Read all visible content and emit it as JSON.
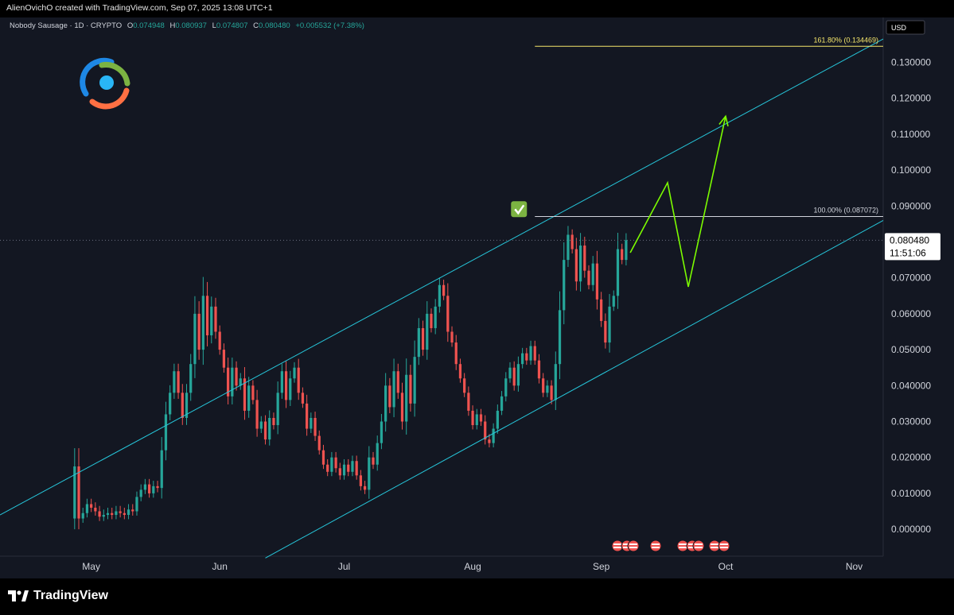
{
  "header": {
    "credit": "AlienOvichO created with TradingView.com, Sep 07, 2025 13:08 UTC+1"
  },
  "footer": {
    "brand": "TradingView"
  },
  "colors": {
    "background": "#131722",
    "up": "#26a69a",
    "down": "#ef5350",
    "channel": "#26c6da",
    "projection": "#7cfc00",
    "fib_top": "#f5e66a",
    "fib_base": "#d1d4dc",
    "text": "#d1d4dc"
  },
  "legend": {
    "symbol": "Nobody Sausage · 1D · CRYPTO",
    "o_label": "O",
    "o_value": "0.074948",
    "h_label": "H",
    "h_value": "0.080937",
    "l_label": "L",
    "l_value": "0.074807",
    "c_label": "C",
    "c_value": "0.080480",
    "change": "+0.005532 (+7.38%)"
  },
  "currency": "USD",
  "last_price": {
    "value": "0.080480",
    "countdown": "11:51:06"
  },
  "fib_levels": [
    {
      "label": "161.80% (0.134469)",
      "price": 0.134469
    },
    {
      "label": "100.00% (0.087072)",
      "price": 0.087072
    }
  ],
  "chart_data": {
    "type": "candlestick",
    "symbol": "Nobody Sausage",
    "interval": "1D",
    "y_ticks": [
      "0.130000",
      "0.120000",
      "0.110000",
      "0.100000",
      "0.090000",
      "0.080000",
      "0.070000",
      "0.060000",
      "0.050000",
      "0.040000",
      "0.030000",
      "0.020000",
      "0.010000",
      "0.000000"
    ],
    "y_tick_values": [
      0.13,
      0.12,
      0.11,
      0.1,
      0.09,
      0.08,
      0.07,
      0.06,
      0.05,
      0.04,
      0.03,
      0.02,
      0.01,
      0.0
    ],
    "ylim": [
      -0.0075,
      0.1425
    ],
    "x_ticks": [
      {
        "label": "May",
        "date": "2025-05-01"
      },
      {
        "label": "Jun",
        "date": "2025-06-01"
      },
      {
        "label": "Jul",
        "date": "2025-07-01"
      },
      {
        "label": "Aug",
        "date": "2025-08-01"
      },
      {
        "label": "Sep",
        "date": "2025-09-01"
      },
      {
        "label": "Oct",
        "date": "2025-10-01"
      },
      {
        "label": "Nov",
        "date": "2025-11-01"
      }
    ],
    "xlim": [
      "2025-04-09",
      "2025-11-08"
    ],
    "close_series": [
      [
        "2025-04-27",
        0.0175
      ],
      [
        "2025-04-28",
        0.003
      ],
      [
        "2025-04-29",
        0.0045
      ],
      [
        "2025-04-30",
        0.007
      ],
      [
        "2025-05-01",
        0.006
      ],
      [
        "2025-05-02",
        0.005
      ],
      [
        "2025-05-03",
        0.0035
      ],
      [
        "2025-05-04",
        0.004
      ],
      [
        "2025-05-05",
        0.0045
      ],
      [
        "2025-05-06",
        0.004
      ],
      [
        "2025-05-07",
        0.005
      ],
      [
        "2025-05-08",
        0.0045
      ],
      [
        "2025-05-09",
        0.004
      ],
      [
        "2025-05-10",
        0.0055
      ],
      [
        "2025-05-11",
        0.005
      ],
      [
        "2025-05-12",
        0.009
      ],
      [
        "2025-05-13",
        0.011
      ],
      [
        "2025-05-14",
        0.0125
      ],
      [
        "2025-05-15",
        0.01
      ],
      [
        "2025-05-16",
        0.012
      ],
      [
        "2025-05-17",
        0.0115
      ],
      [
        "2025-05-18",
        0.022
      ],
      [
        "2025-05-19",
        0.032
      ],
      [
        "2025-05-20",
        0.038
      ],
      [
        "2025-05-21",
        0.044
      ],
      [
        "2025-05-22",
        0.038
      ],
      [
        "2025-05-23",
        0.031
      ],
      [
        "2025-05-24",
        0.038
      ],
      [
        "2025-05-25",
        0.046
      ],
      [
        "2025-05-26",
        0.06
      ],
      [
        "2025-05-27",
        0.05
      ],
      [
        "2025-05-28",
        0.065
      ],
      [
        "2025-05-29",
        0.054
      ],
      [
        "2025-05-30",
        0.062
      ],
      [
        "2025-05-31",
        0.055
      ],
      [
        "2025-06-01",
        0.05
      ],
      [
        "2025-06-02",
        0.045
      ],
      [
        "2025-06-03",
        0.037
      ],
      [
        "2025-06-04",
        0.045
      ],
      [
        "2025-06-05",
        0.04
      ],
      [
        "2025-06-06",
        0.042
      ],
      [
        "2025-06-07",
        0.033
      ],
      [
        "2025-06-08",
        0.04
      ],
      [
        "2025-06-09",
        0.036
      ],
      [
        "2025-06-10",
        0.028
      ],
      [
        "2025-06-11",
        0.03
      ],
      [
        "2025-06-12",
        0.025
      ],
      [
        "2025-06-13",
        0.031
      ],
      [
        "2025-06-14",
        0.029
      ],
      [
        "2025-06-15",
        0.038
      ],
      [
        "2025-06-16",
        0.044
      ],
      [
        "2025-06-17",
        0.036
      ],
      [
        "2025-06-18",
        0.042
      ],
      [
        "2025-06-19",
        0.045
      ],
      [
        "2025-06-20",
        0.038
      ],
      [
        "2025-06-21",
        0.035
      ],
      [
        "2025-06-22",
        0.028
      ],
      [
        "2025-06-23",
        0.031
      ],
      [
        "2025-06-24",
        0.026
      ],
      [
        "2025-06-25",
        0.022
      ],
      [
        "2025-06-26",
        0.018
      ],
      [
        "2025-06-27",
        0.016
      ],
      [
        "2025-06-28",
        0.02
      ],
      [
        "2025-06-29",
        0.017
      ],
      [
        "2025-06-30",
        0.015
      ],
      [
        "2025-07-01",
        0.018
      ],
      [
        "2025-07-02",
        0.016
      ],
      [
        "2025-07-03",
        0.019
      ],
      [
        "2025-07-04",
        0.015
      ],
      [
        "2025-07-05",
        0.012
      ],
      [
        "2025-07-06",
        0.011
      ],
      [
        "2025-07-07",
        0.02
      ],
      [
        "2025-07-08",
        0.018
      ],
      [
        "2025-07-09",
        0.024
      ],
      [
        "2025-07-10",
        0.03
      ],
      [
        "2025-07-11",
        0.04
      ],
      [
        "2025-07-12",
        0.034
      ],
      [
        "2025-07-13",
        0.044
      ],
      [
        "2025-07-14",
        0.038
      ],
      [
        "2025-07-15",
        0.03
      ],
      [
        "2025-07-16",
        0.043
      ],
      [
        "2025-07-17",
        0.035
      ],
      [
        "2025-07-18",
        0.048
      ],
      [
        "2025-07-19",
        0.056
      ],
      [
        "2025-07-20",
        0.05
      ],
      [
        "2025-07-21",
        0.06
      ],
      [
        "2025-07-22",
        0.056
      ],
      [
        "2025-07-23",
        0.062
      ],
      [
        "2025-07-24",
        0.068
      ],
      [
        "2025-07-25",
        0.065
      ],
      [
        "2025-07-26",
        0.055
      ],
      [
        "2025-07-27",
        0.052
      ],
      [
        "2025-07-28",
        0.046
      ],
      [
        "2025-07-29",
        0.042
      ],
      [
        "2025-07-30",
        0.038
      ],
      [
        "2025-07-31",
        0.033
      ],
      [
        "2025-08-01",
        0.029
      ],
      [
        "2025-08-02",
        0.032
      ],
      [
        "2025-08-03",
        0.03
      ],
      [
        "2025-08-04",
        0.025
      ],
      [
        "2025-08-05",
        0.024
      ],
      [
        "2025-08-06",
        0.028
      ],
      [
        "2025-08-07",
        0.033
      ],
      [
        "2025-08-08",
        0.037
      ],
      [
        "2025-08-09",
        0.042
      ],
      [
        "2025-08-10",
        0.045
      ],
      [
        "2025-08-11",
        0.04
      ],
      [
        "2025-08-12",
        0.046
      ],
      [
        "2025-08-13",
        0.049
      ],
      [
        "2025-08-14",
        0.047
      ],
      [
        "2025-08-15",
        0.051
      ],
      [
        "2025-08-16",
        0.047
      ],
      [
        "2025-08-17",
        0.042
      ],
      [
        "2025-08-18",
        0.038
      ],
      [
        "2025-08-19",
        0.04
      ],
      [
        "2025-08-20",
        0.036
      ],
      [
        "2025-08-21",
        0.046
      ],
      [
        "2025-08-22",
        0.061
      ],
      [
        "2025-08-23",
        0.075
      ],
      [
        "2025-08-24",
        0.082
      ],
      [
        "2025-08-25",
        0.078
      ],
      [
        "2025-08-26",
        0.069
      ],
      [
        "2025-08-27",
        0.079
      ],
      [
        "2025-08-28",
        0.072
      ],
      [
        "2025-08-29",
        0.068
      ],
      [
        "2025-08-30",
        0.074
      ],
      [
        "2025-08-31",
        0.064
      ],
      [
        "2025-09-01",
        0.058
      ],
      [
        "2025-09-02",
        0.052
      ],
      [
        "2025-09-03",
        0.062
      ],
      [
        "2025-09-04",
        0.065
      ],
      [
        "2025-09-05",
        0.078
      ],
      [
        "2025-09-06",
        0.075
      ],
      [
        "2025-09-07",
        0.0805
      ]
    ],
    "channel_upper": [
      [
        "2025-04-09",
        0.004
      ],
      [
        "2025-11-08",
        0.1365
      ]
    ],
    "channel_lower": [
      [
        "2025-06-12",
        -0.008
      ],
      [
        "2025-11-08",
        0.086
      ]
    ],
    "projection_path": [
      [
        "2025-09-08",
        0.077
      ],
      [
        "2025-09-17",
        0.0965
      ],
      [
        "2025-09-22",
        0.0675
      ],
      [
        "2025-10-01",
        0.115
      ]
    ],
    "checkmark_at": [
      "2025-08-16",
      0.09
    ],
    "fib_line_start": "2025-08-16"
  }
}
